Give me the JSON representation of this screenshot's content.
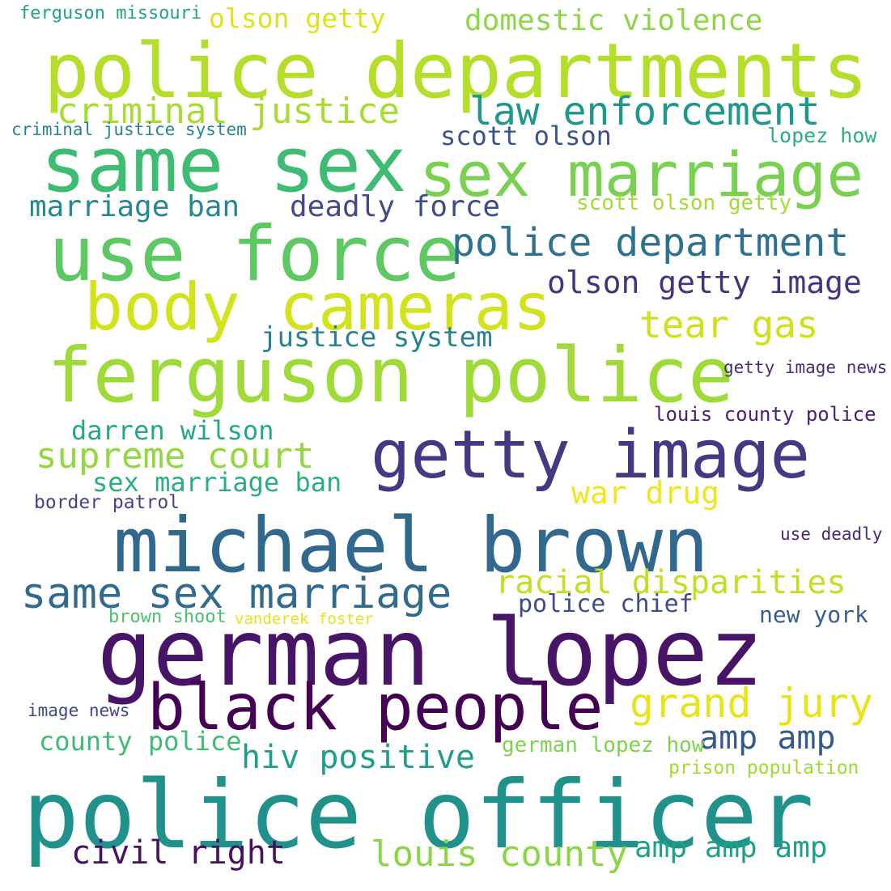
{
  "words": [
    {
      "text": "police departments",
      "color": "#b5de2b"
    },
    {
      "text": "same sex",
      "color": "#3fbc73"
    },
    {
      "text": "sex marriage",
      "color": "#7ad151"
    },
    {
      "text": "use force",
      "color": "#5ec962"
    },
    {
      "text": "body cameras",
      "color": "#d2e21b"
    },
    {
      "text": "ferguson police",
      "color": "#a0da39"
    },
    {
      "text": "getty image",
      "color": "#443983"
    },
    {
      "text": "michael brown",
      "color": "#31688e"
    },
    {
      "text": "german lopez",
      "color": "#481467"
    },
    {
      "text": "black people",
      "color": "#440154"
    },
    {
      "text": "police officer",
      "color": "#21918c"
    },
    {
      "text": "criminal justice",
      "color": "#a8db34"
    },
    {
      "text": "law enforcement",
      "color": "#1f988b"
    },
    {
      "text": "police department",
      "color": "#2c728e"
    },
    {
      "text": "same sex marriage",
      "color": "#306a8e"
    },
    {
      "text": "domestic violence",
      "color": "#8ed645"
    },
    {
      "text": "olson getty",
      "color": "#dde318"
    },
    {
      "text": "ferguson missouri",
      "color": "#20a386"
    },
    {
      "text": "criminal justice system",
      "color": "#25858e"
    },
    {
      "text": "scott olson",
      "color": "#3b528b"
    },
    {
      "text": "lopez how",
      "color": "#2ab07f"
    },
    {
      "text": "marriage ban",
      "color": "#23898e"
    },
    {
      "text": "deadly force",
      "color": "#3e4a89"
    },
    {
      "text": "scott olson getty",
      "color": "#a5db36"
    },
    {
      "text": "olson getty image",
      "color": "#46337e"
    },
    {
      "text": "tear gas",
      "color": "#d0e11c"
    },
    {
      "text": "justice system",
      "color": "#26828e"
    },
    {
      "text": "getty image news",
      "color": "#472c7a"
    },
    {
      "text": "darren wilson",
      "color": "#22a884"
    },
    {
      "text": "louis county police",
      "color": "#482173"
    },
    {
      "text": "supreme court",
      "color": "#93d741"
    },
    {
      "text": "sex marriage ban",
      "color": "#29af7f"
    },
    {
      "text": "war drug",
      "color": "#f1e51d"
    },
    {
      "text": "border patrol",
      "color": "#414487"
    },
    {
      "text": "use deadly",
      "color": "#482878"
    },
    {
      "text": "racial disparities",
      "color": "#c2df23"
    },
    {
      "text": "police chief",
      "color": "#3e4c8a"
    },
    {
      "text": "brown shoot",
      "color": "#4ac16d"
    },
    {
      "text": "vanderek foster",
      "color": "#e5e419"
    },
    {
      "text": "new york",
      "color": "#355f8d"
    },
    {
      "text": "grand jury",
      "color": "#e7e419"
    },
    {
      "text": "image news",
      "color": "#3f4788"
    },
    {
      "text": "amp amp",
      "color": "#38598c"
    },
    {
      "text": "county police",
      "color": "#3dbc74"
    },
    {
      "text": "hiv positive",
      "color": "#1f9e89"
    },
    {
      "text": "german lopez how",
      "color": "#7cd250"
    },
    {
      "text": "prison population",
      "color": "#a2da37"
    },
    {
      "text": "civil right",
      "color": "#471063"
    },
    {
      "text": "louis county",
      "color": "#8bd646"
    },
    {
      "text": "amp amp amp",
      "color": "#1fa088"
    }
  ]
}
